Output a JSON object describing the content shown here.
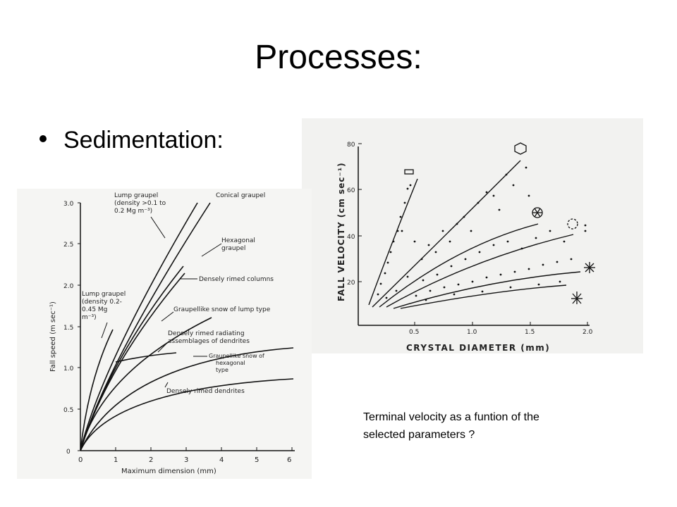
{
  "slide": {
    "title": "Processes:",
    "bullet": "Sedimentation:",
    "caption_line1": "Terminal velocity as a funtion of the",
    "caption_line2": "selected parameters ?"
  },
  "figure_right": {
    "y_label": "FALL VELOCITY (cm sec⁻¹)",
    "x_label": "CRYSTAL DIAMETER (mm)",
    "y_ticks": [
      "20",
      "40",
      "60",
      "80"
    ],
    "x_ticks": [
      "0.5",
      "1.0",
      "1.5",
      "2.0"
    ]
  },
  "figure_left": {
    "y_label": "Fall speed (m sec⁻¹)",
    "x_label": "Maximum dimension (mm)",
    "y_ticks": [
      "0",
      "0.5",
      "1.0",
      "1.5",
      "2.0",
      "2.5",
      "3.0"
    ],
    "x_ticks": [
      "0",
      "1",
      "2",
      "3",
      "4",
      "5",
      "6"
    ],
    "labels": {
      "lump_high_1": "Lump graupel",
      "lump_high_2": "(density >0.1 to",
      "lump_high_3": "0.2 Mg m⁻³)",
      "conical": "Conical graupel",
      "hexagonal_1": "Hexagonal",
      "hexagonal_2": "graupel",
      "columns": "Densely rimed columns",
      "lump_low_1": "Lump graupel",
      "lump_low_2": "(density 0.2-",
      "lump_low_3": "0.45 Mg",
      "lump_low_4": "m⁻³)",
      "snow_lump": "Graupellike snow of lump type",
      "radiating_1": "Densely rimed radiating",
      "radiating_2": "assemblages of dendrites",
      "snow_hex_1": "Graupellike snow of",
      "snow_hex_2": "hexagonal",
      "snow_hex_3": "type",
      "dendrites": "Densely rimed dendrites"
    }
  }
}
